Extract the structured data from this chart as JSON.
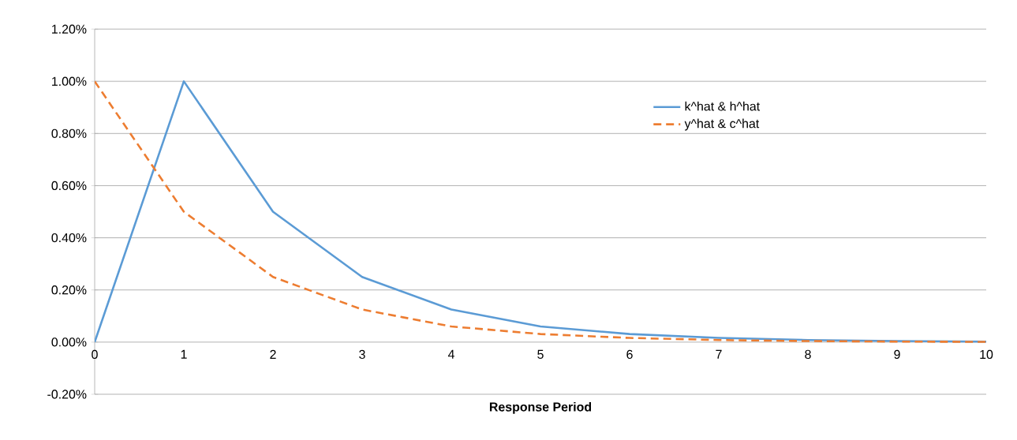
{
  "chart_data": {
    "type": "line",
    "xlabel": "Response Period",
    "x": [
      0,
      1,
      2,
      3,
      4,
      5,
      6,
      7,
      8,
      9,
      10
    ],
    "series": [
      {
        "name": "k^hat & h^hat",
        "color": "#5b9bd5",
        "line_style": "solid",
        "values": [
          0,
          1.0,
          0.5,
          0.25,
          0.125,
          0.06,
          0.031,
          0.016,
          0.008,
          0.004,
          0.002
        ]
      },
      {
        "name": "y^hat & c^hat",
        "color": "#ed7d31",
        "line_style": "dashed",
        "values": [
          1.0,
          0.5,
          0.25,
          0.125,
          0.06,
          0.031,
          0.016,
          0.008,
          0.004,
          0.002,
          0.001
        ]
      }
    ],
    "xlim": [
      0,
      10
    ],
    "xticks": [
      0,
      1,
      2,
      3,
      4,
      5,
      6,
      7,
      8,
      9,
      10
    ],
    "ylim": [
      -0.2,
      1.2
    ],
    "yticks": [
      {
        "value": -0.2,
        "label": "-0.20%"
      },
      {
        "value": 0,
        "label": "0.00%"
      },
      {
        "value": 0.2,
        "label": "0.20%"
      },
      {
        "value": 0.4,
        "label": "0.40%"
      },
      {
        "value": 0.6,
        "label": "0.60%"
      },
      {
        "value": 0.8,
        "label": "0.80%"
      },
      {
        "value": 1.0,
        "label": "1.00%"
      },
      {
        "value": 1.2,
        "label": "1.20%"
      }
    ],
    "grid": "y",
    "legend": "top right",
    "marker": "none"
  }
}
